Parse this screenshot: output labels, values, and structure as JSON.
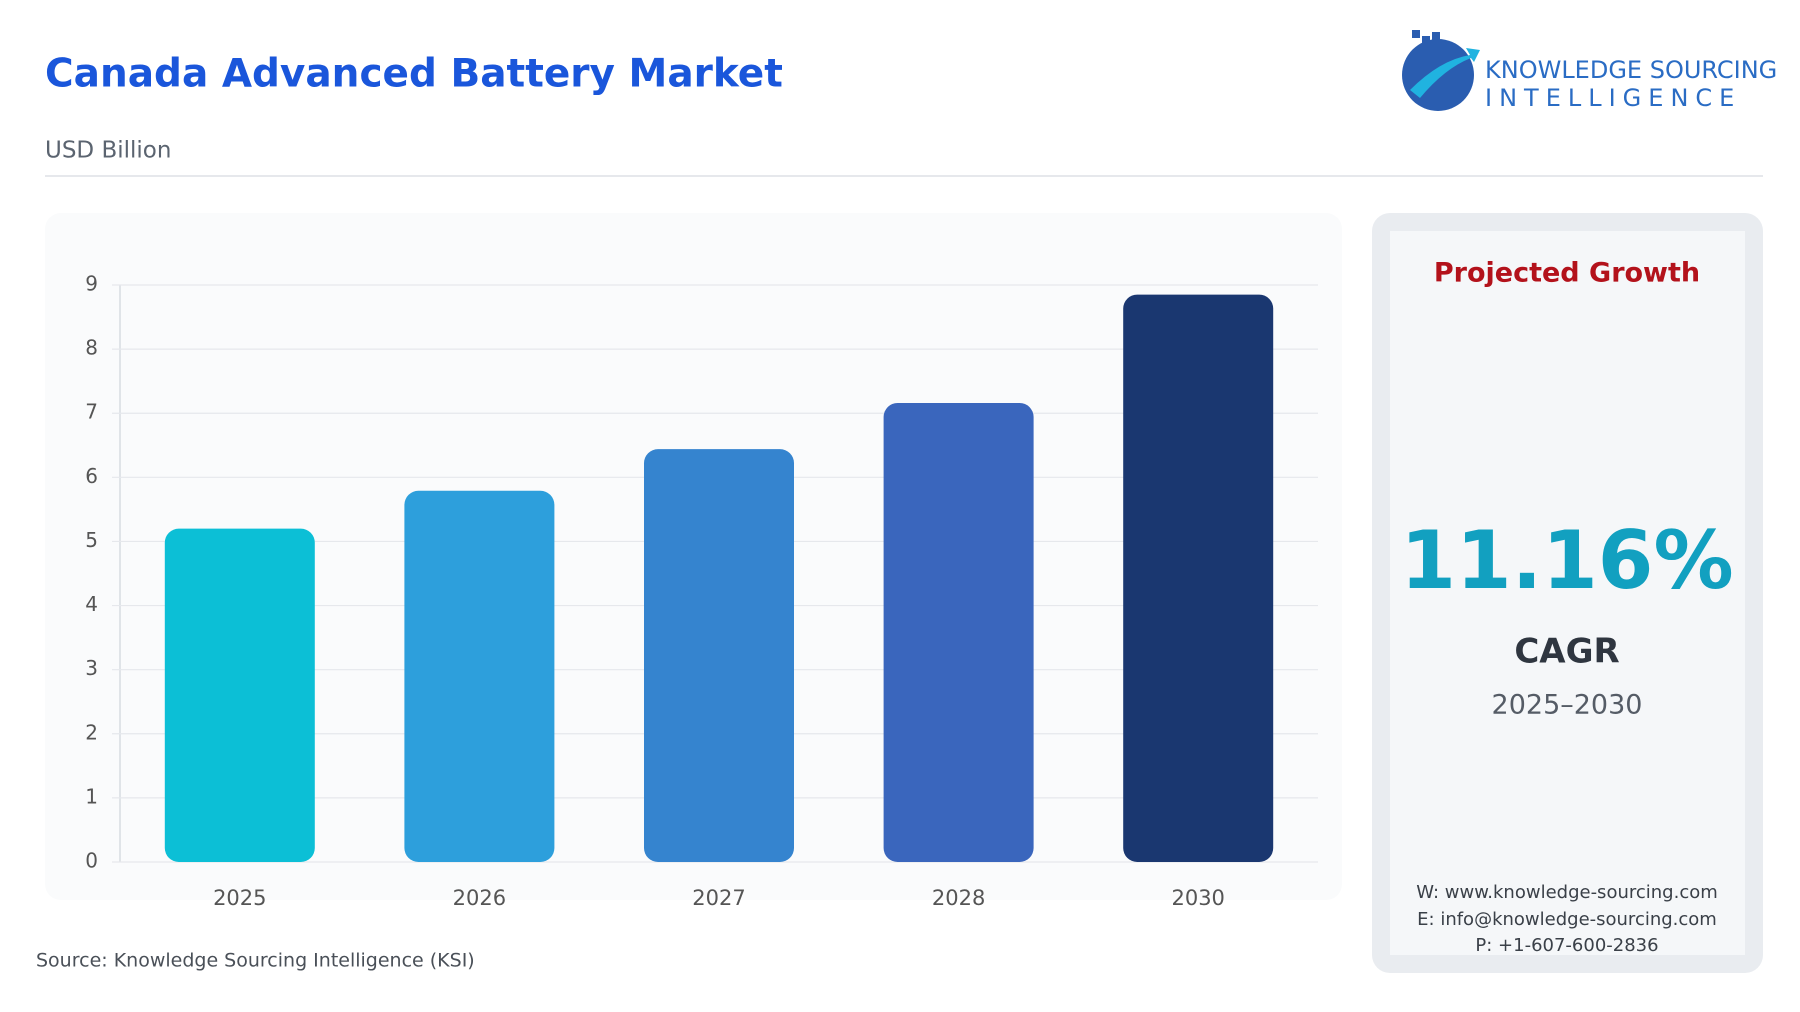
{
  "chart_data": {
    "type": "bar",
    "title": "Canada Advanced Battery Market",
    "subtitle": "USD Billion",
    "categories": [
      "2025",
      "2026",
      "2027",
      "2028",
      "2030"
    ],
    "values": [
      5.2,
      5.79,
      6.44,
      7.16,
      8.85
    ],
    "colors": [
      "#0cbfd6",
      "#2d9fdc",
      "#3584cf",
      "#3a66bd",
      "#1a3770"
    ],
    "ylim": [
      0,
      9
    ],
    "yticks": [
      0,
      1,
      2,
      3,
      4,
      5,
      6,
      7,
      8,
      9
    ],
    "grid": true,
    "source": "Source: Knowledge Sourcing Intelligence (KSI)"
  },
  "logo": {
    "line1": "KNOWLEDGE SOURCING",
    "line2": "INTELLIGENCE"
  },
  "panel": {
    "heading": "Projected Growth",
    "value": "11.16%",
    "label": "CAGR",
    "period": "2025–2030",
    "contacts": [
      "W: www.knowledge-sourcing.com",
      "E: info@knowledge-sourcing.com",
      "P: +1-607-600-2836"
    ]
  }
}
